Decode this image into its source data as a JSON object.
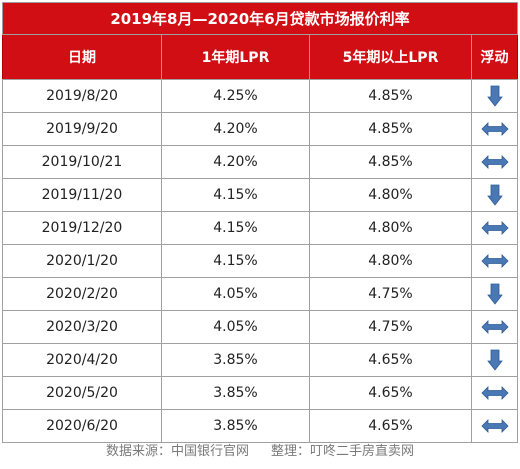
{
  "table": {
    "title": "2019年8月—2020年6月贷款市场报价利率",
    "headers": [
      "日期",
      "1年期LPR",
      "5年期以上LPR",
      "浮动"
    ],
    "rows": [
      {
        "date": "2019/8/20",
        "lpr1": "4.25%",
        "lpr5": "4.85%",
        "trend": "down-arrow"
      },
      {
        "date": "2019/9/20",
        "lpr1": "4.20%",
        "lpr5": "4.85%",
        "trend": "flat-arrow"
      },
      {
        "date": "2019/10/21",
        "lpr1": "4.20%",
        "lpr5": "4.85%",
        "trend": "flat-arrow"
      },
      {
        "date": "2019/11/20",
        "lpr1": "4.15%",
        "lpr5": "4.80%",
        "trend": "down-arrow"
      },
      {
        "date": "2019/12/20",
        "lpr1": "4.15%",
        "lpr5": "4.80%",
        "trend": "flat-arrow"
      },
      {
        "date": "2020/1/20",
        "lpr1": "4.15%",
        "lpr5": "4.80%",
        "trend": "flat-arrow"
      },
      {
        "date": "2020/2/20",
        "lpr1": "4.05%",
        "lpr5": "4.75%",
        "trend": "down-arrow"
      },
      {
        "date": "2020/3/20",
        "lpr1": "4.05%",
        "lpr5": "4.75%",
        "trend": "flat-arrow"
      },
      {
        "date": "2020/4/20",
        "lpr1": "3.85%",
        "lpr5": "4.65%",
        "trend": "down-arrow"
      },
      {
        "date": "2020/5/20",
        "lpr1": "3.85%",
        "lpr5": "4.65%",
        "trend": "flat-arrow"
      },
      {
        "date": "2020/6/20",
        "lpr1": "3.85%",
        "lpr5": "4.65%",
        "trend": "flat-arrow"
      }
    ]
  },
  "footer": {
    "source": "数据来源：中国银行官网",
    "editor": "整理：叮咚二手房直卖网"
  },
  "colors": {
    "header_bg": "#d10e14",
    "arrow": "#4a78b5"
  }
}
